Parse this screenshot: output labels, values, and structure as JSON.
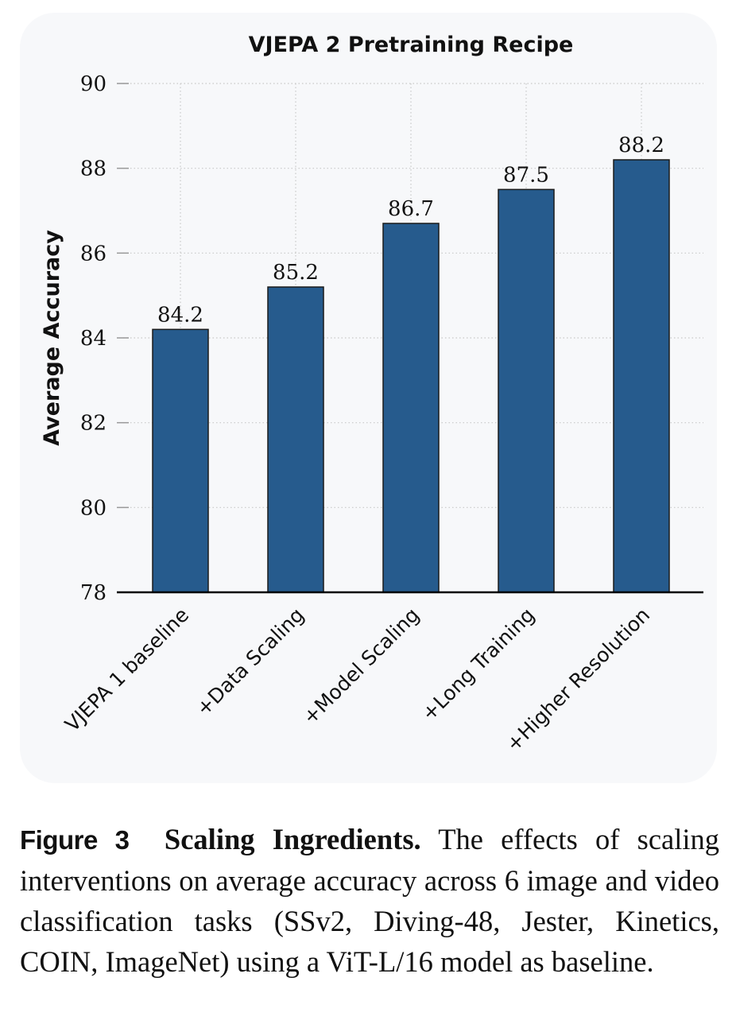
{
  "chart_data": {
    "type": "bar",
    "title": "VJEPA 2 Pretraining Recipe",
    "xlabel": "",
    "ylabel": "Average Accuracy",
    "categories": [
      "VJEPA 1 baseline",
      "+Data Scaling",
      "+Model Scaling",
      "+Long Training",
      "+Higher Resolution"
    ],
    "values": [
      84.2,
      85.2,
      86.7,
      87.5,
      88.2
    ],
    "value_labels": [
      "84.2",
      "85.2",
      "86.7",
      "87.5",
      "88.2"
    ],
    "ylim": [
      78,
      90
    ],
    "yticks": [
      78,
      80,
      82,
      84,
      86,
      88,
      90
    ],
    "ytick_labels": [
      "78",
      "80",
      "82",
      "84",
      "86",
      "88",
      "90"
    ],
    "grid": true,
    "bar_color": "#265b8d",
    "bar_edge_color": "#1a1a1a",
    "background_color": "#f7f8fa"
  },
  "caption": {
    "figure_label": "Figure 3",
    "title": "Scaling Ingredients.",
    "text": "The effects of scaling interventions on average accuracy across 6 image and video classification tasks (SSv2, Diving-48, Jester, Kinetics, COIN, ImageNet) using a ViT-L/16 model as baseline."
  }
}
